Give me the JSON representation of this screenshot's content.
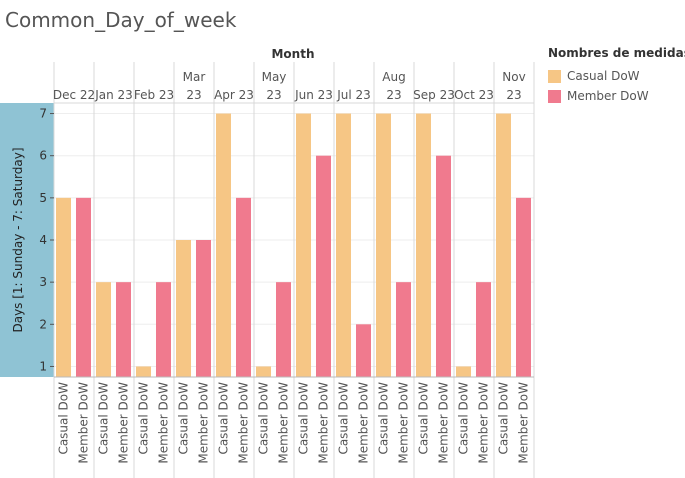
{
  "title": "Common_Day_of_week",
  "chart_data": {
    "type": "bar",
    "title": "Common_Day_of_week",
    "column_header": "Month",
    "ylabel": "Days [1: Sunday - 7: Saturday]",
    "ylim": [
      0.75,
      7.25
    ],
    "yticks": [
      1,
      2,
      3,
      4,
      5,
      6,
      7
    ],
    "grid": true,
    "legend_position": "right",
    "categories": [
      [
        "Dec 22"
      ],
      [
        "Jan 23"
      ],
      [
        "Feb 23"
      ],
      [
        "Mar",
        "23"
      ],
      [
        "Apr 23"
      ],
      [
        "May",
        "23"
      ],
      [
        "Jun 23"
      ],
      [
        "Jul 23"
      ],
      [
        "Aug",
        "23"
      ],
      [
        "Sep 23"
      ],
      [
        "Oct 23"
      ],
      [
        "Nov",
        "23"
      ]
    ],
    "series": [
      {
        "name": "Casual DoW",
        "color": "#F6C685",
        "values": [
          5,
          3,
          1,
          4,
          7,
          1,
          7,
          7,
          7,
          7,
          1,
          7
        ]
      },
      {
        "name": "Member DoW",
        "color": "#F07A8E",
        "values": [
          5,
          3,
          3,
          4,
          5,
          3,
          6,
          2,
          3,
          6,
          3,
          5
        ]
      }
    ]
  },
  "legend": {
    "title": "Nombres de medidas",
    "items": [
      {
        "label": "Casual DoW",
        "color": "#F6C685"
      },
      {
        "label": "Member DoW",
        "color": "#F07A8E"
      }
    ]
  },
  "colors": {
    "axis_band": "#8FC3D4",
    "gridline": "#EEEEEE",
    "divider": "#D8D8D8"
  }
}
